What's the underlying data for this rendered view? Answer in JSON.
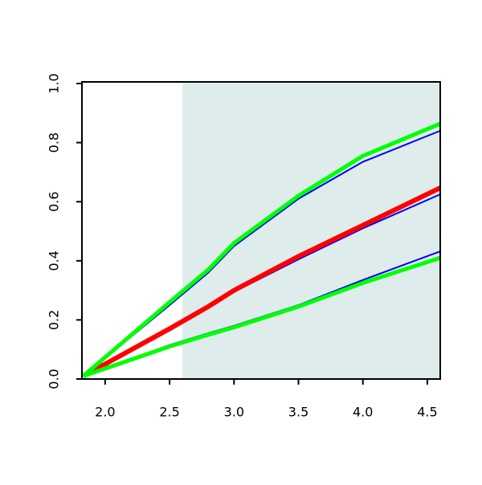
{
  "chart_data": {
    "type": "line",
    "x": [
      1.83,
      2.5,
      2.8,
      3.0,
      3.5,
      4.0,
      4.6
    ],
    "series": [
      {
        "color": "#0000ff",
        "values": [
          0.01,
          0.25,
          0.36,
          0.45,
          0.61,
          0.735,
          0.84
        ]
      },
      {
        "color": "#0000ff",
        "values": [
          0.01,
          0.17,
          0.24,
          0.295,
          0.405,
          0.51,
          0.625
        ]
      },
      {
        "color": "#0000ff",
        "values": [
          0.01,
          0.115,
          0.155,
          0.18,
          0.25,
          0.335,
          0.432
        ]
      },
      {
        "color": "#ff0000",
        "values": [
          0.01,
          0.17,
          0.245,
          0.3,
          0.415,
          0.52,
          0.647
        ]
      },
      {
        "color": "#00ff00",
        "values": [
          0.01,
          0.26,
          0.37,
          0.46,
          0.62,
          0.755,
          0.864
        ]
      },
      {
        "color": "#00ff00",
        "values": [
          0.01,
          0.11,
          0.15,
          0.175,
          0.245,
          0.325,
          0.41
        ]
      }
    ],
    "shaded_region": {
      "xlim": [
        2.6,
        4.6
      ],
      "color": "#dfecec"
    },
    "xlim": [
      1.82,
      4.6
    ],
    "ylim": [
      0,
      1
    ],
    "xticks": [
      {
        "value": 2,
        "label": "2.0"
      },
      2.5,
      {
        "value": 3,
        "label": "3.0"
      },
      3.5,
      {
        "value": 4,
        "label": "4.0"
      },
      4.5
    ],
    "yticks": [
      {
        "value": 0,
        "label": "0.0"
      },
      0.2,
      0.4,
      0.6,
      0.8,
      {
        "value": 1,
        "label": "1.0"
      }
    ]
  }
}
